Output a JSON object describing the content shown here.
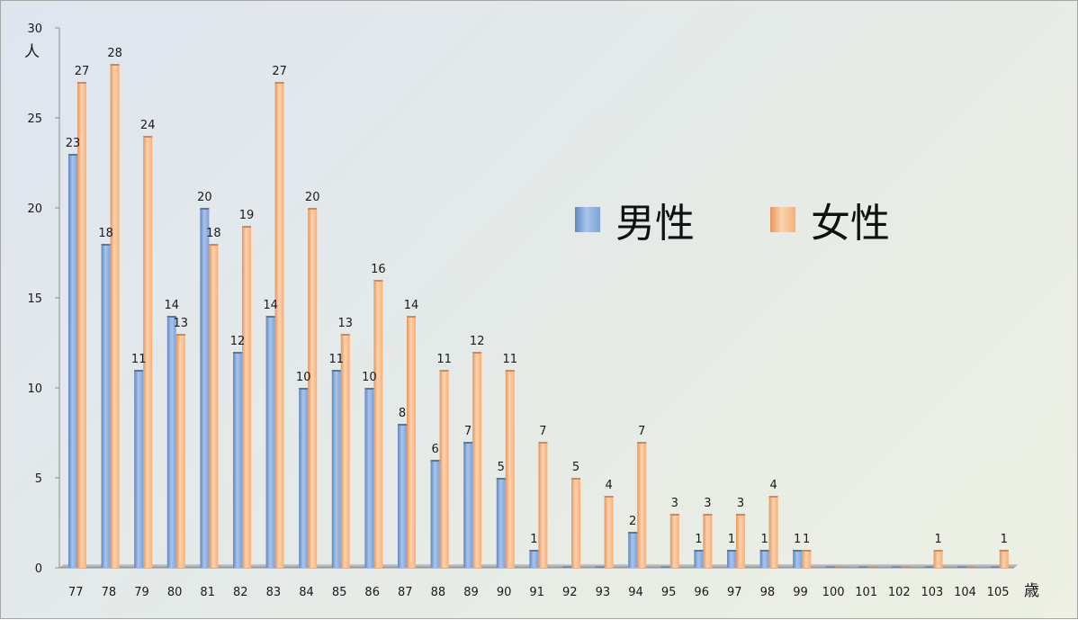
{
  "chart_data": {
    "type": "bar",
    "categories": [
      "77",
      "78",
      "79",
      "80",
      "81",
      "82",
      "83",
      "84",
      "85",
      "86",
      "87",
      "88",
      "89",
      "90",
      "91",
      "92",
      "93",
      "94",
      "95",
      "96",
      "97",
      "98",
      "99",
      "100",
      "101",
      "102",
      "103",
      "104",
      "105"
    ],
    "series": [
      {
        "name": "男性",
        "color": "#8eb2e0",
        "values": [
          23,
          18,
          11,
          14,
          20,
          12,
          14,
          10,
          11,
          10,
          8,
          6,
          7,
          5,
          1,
          0,
          0,
          2,
          0,
          1,
          1,
          1,
          1,
          0,
          0,
          0,
          0,
          0,
          0
        ]
      },
      {
        "name": "女性",
        "color": "#f9be8e",
        "values": [
          27,
          28,
          24,
          13,
          18,
          19,
          27,
          20,
          13,
          16,
          14,
          11,
          12,
          11,
          7,
          5,
          4,
          7,
          3,
          3,
          3,
          4,
          1,
          0,
          0,
          0,
          1,
          0,
          1
        ]
      }
    ],
    "value_labels": {
      "男性": [
        "23",
        "18",
        "11",
        "14",
        "20",
        "12",
        "14",
        "10",
        "11",
        "10",
        "8",
        "6",
        "7",
        "5",
        "1",
        "",
        "",
        "2",
        "",
        "1",
        "1",
        "1",
        "1",
        "",
        "",
        "",
        "",
        "",
        ""
      ],
      "女性": [
        "27",
        "28",
        "24",
        "13",
        "18",
        "19",
        "27",
        "20",
        "13",
        "16",
        "14",
        "11",
        "12",
        "11",
        "7",
        "5",
        "4",
        "7",
        "3",
        "3",
        "3",
        "4",
        "1",
        "",
        "",
        "",
        "1",
        "",
        "1"
      ]
    },
    "y_ticks": [
      "0",
      "5",
      "10",
      "15",
      "20",
      "25",
      "30"
    ],
    "ylim": [
      0,
      30
    ],
    "ylabel": "人",
    "xlabel": "歳",
    "legend_position": "top-right",
    "grid": false
  }
}
